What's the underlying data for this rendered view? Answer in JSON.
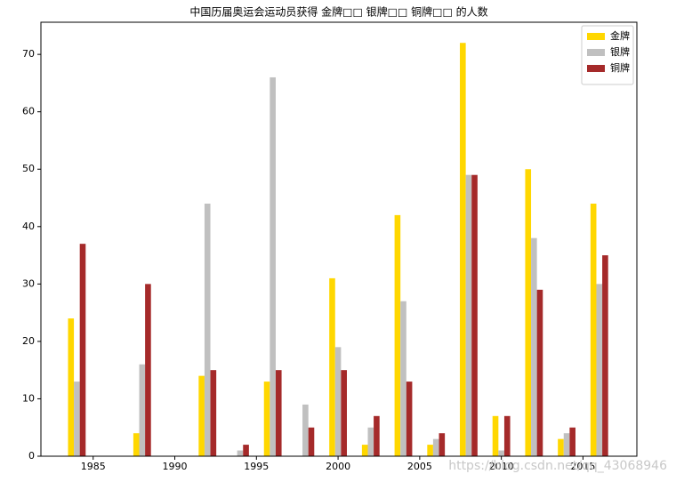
{
  "chart_data": {
    "type": "bar",
    "title": "中国历届奥运会运动员获得 金牌□□ 银牌□□ 铜牌□□ 的人数",
    "x": [
      1984,
      1988,
      1992,
      1994,
      1996,
      1998,
      2000,
      2002,
      2004,
      2006,
      2008,
      2010,
      2012,
      2014,
      2016
    ],
    "series": [
      {
        "name": "金牌",
        "color": "#ffd700",
        "values": [
          24,
          4,
          14,
          0,
          13,
          0,
          31,
          2,
          42,
          2,
          72,
          7,
          50,
          3,
          44
        ]
      },
      {
        "name": "银牌",
        "color": "#c0c0c0",
        "values": [
          13,
          16,
          44,
          1,
          66,
          9,
          19,
          5,
          27,
          3,
          49,
          1,
          38,
          4,
          30
        ]
      },
      {
        "name": "铜牌",
        "color": "#a52a2a",
        "values": [
          37,
          30,
          15,
          2,
          15,
          5,
          15,
          7,
          13,
          4,
          49,
          7,
          29,
          5,
          35
        ]
      }
    ],
    "xlim": [
      1981.8,
      2018.3
    ],
    "xticks": [
      1985,
      1990,
      1995,
      2000,
      2005,
      2010,
      2015
    ],
    "ylim": [
      0,
      75.6
    ],
    "yticks": [
      0,
      10,
      20,
      30,
      40,
      50,
      60,
      70
    ],
    "legend": "upper right",
    "watermark": "https://blog.csdn.net/qq_43068946"
  }
}
